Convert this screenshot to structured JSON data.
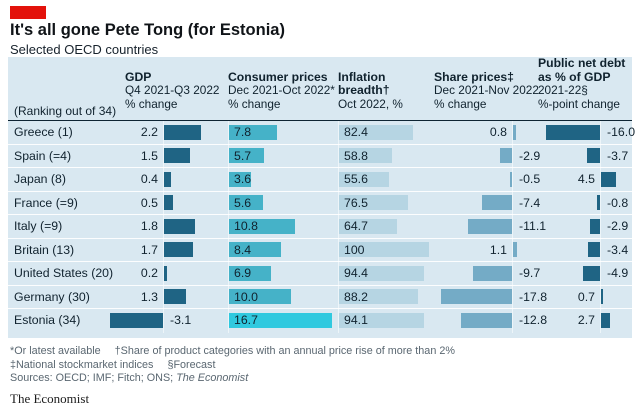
{
  "brand": {
    "signature": "The Economist"
  },
  "header": {
    "title": "It's all gone Pete Tong (for Estonia)",
    "subtitle": "Selected OECD countries"
  },
  "table": {
    "ranking_note": "(Ranking out of 34)",
    "columns": [
      {
        "title": "GDP",
        "period": "Q4 2021-Q3 2022",
        "unit": "% change"
      },
      {
        "title": "Consumer prices",
        "period": "Dec 2021-Oct 2022*",
        "unit": "% change"
      },
      {
        "title": "Inflation breadth†",
        "period": "Oct 2022, %",
        "unit": ""
      },
      {
        "title": "Share prices‡",
        "period": "Dec 2021-Nov 2022",
        "unit": "% change"
      },
      {
        "title": "Public net debt as % of GDP",
        "period": "2021-22§",
        "unit": "%-point change"
      }
    ],
    "rows": [
      {
        "country": "Greece (1)",
        "gdp": "2.2",
        "consumer_prices": "7.8",
        "inflation_breadth": "82.4",
        "share_prices": "0.8",
        "public_debt": "-16.0"
      },
      {
        "country": "Spain (=4)",
        "gdp": "1.5",
        "consumer_prices": "5.7",
        "inflation_breadth": "58.8",
        "share_prices": "-2.9",
        "public_debt": "-3.7"
      },
      {
        "country": "Japan (8)",
        "gdp": "0.4",
        "consumer_prices": "3.6",
        "inflation_breadth": "55.6",
        "share_prices": "-0.5",
        "public_debt": "4.5"
      },
      {
        "country": "France (=9)",
        "gdp": "0.5",
        "consumer_prices": "5.6",
        "inflation_breadth": "76.5",
        "share_prices": "-7.4",
        "public_debt": "-0.8"
      },
      {
        "country": "Italy (=9)",
        "gdp": "1.8",
        "consumer_prices": "10.8",
        "inflation_breadth": "64.7",
        "share_prices": "-11.1",
        "public_debt": "-2.9"
      },
      {
        "country": "Britain (13)",
        "gdp": "1.7",
        "consumer_prices": "8.4",
        "inflation_breadth": "100",
        "share_prices": "1.1",
        "public_debt": "-3.4"
      },
      {
        "country": "United States (20)",
        "gdp": "0.2",
        "consumer_prices": "6.9",
        "inflation_breadth": "94.4",
        "share_prices": "-9.7",
        "public_debt": "-4.9"
      },
      {
        "country": "Germany (30)",
        "gdp": "1.3",
        "consumer_prices": "10.0",
        "inflation_breadth": "88.2",
        "share_prices": "-17.8",
        "public_debt": "0.7"
      },
      {
        "country": "Estonia (34)",
        "gdp": "-3.1",
        "consumer_prices": "16.7",
        "inflation_breadth": "94.1",
        "share_prices": "-12.8",
        "public_debt": "2.7"
      }
    ]
  },
  "chart_data": {
    "type": "bar",
    "title": "It's all gone Pete Tong (for Estonia)",
    "subtitle": "Selected OECD countries",
    "categories": [
      "Greece (1)",
      "Spain (=4)",
      "Japan (8)",
      "France (=9)",
      "Italy (=9)",
      "Britain (13)",
      "United States (20)",
      "Germany (30)",
      "Estonia (34)"
    ],
    "series": [
      {
        "name": "GDP",
        "period": "Q4 2021-Q3 2022",
        "unit": "% change",
        "values": [
          2.2,
          1.5,
          0.4,
          0.5,
          1.8,
          1.7,
          0.2,
          1.3,
          -3.1
        ]
      },
      {
        "name": "Consumer prices",
        "period": "Dec 2021-Oct 2022",
        "unit": "% change",
        "values": [
          7.8,
          5.7,
          3.6,
          5.6,
          10.8,
          8.4,
          6.9,
          10.0,
          16.7
        ]
      },
      {
        "name": "Inflation breadth",
        "period": "Oct 2022",
        "unit": "%",
        "values": [
          82.4,
          58.8,
          55.6,
          76.5,
          64.7,
          100,
          94.4,
          88.2,
          94.1
        ]
      },
      {
        "name": "Share prices",
        "period": "Dec 2021-Nov 2022",
        "unit": "% change",
        "values": [
          0.8,
          -2.9,
          -0.5,
          -7.4,
          -11.1,
          1.1,
          -9.7,
          -17.8,
          -12.8
        ]
      },
      {
        "name": "Public net debt as % of GDP",
        "period": "2021-22",
        "unit": "%-point change",
        "values": [
          -16.0,
          -3.7,
          4.5,
          -0.8,
          -2.9,
          -3.4,
          -4.9,
          0.7,
          2.7
        ]
      }
    ],
    "legend_position": "none",
    "grid": false,
    "highlight_category": "Estonia (34)"
  },
  "colors": {
    "red_tab": "#e3120b",
    "panel_bg": "#d9e8f1",
    "dark_bar": "#1f6484",
    "cp_bar": "#45b2c8",
    "cp_highlight": "#30c9df",
    "ib_bar": "#b6d5e3",
    "sp_bar": "#74abc6",
    "rule": "#0e2433",
    "text": "#10222e",
    "footnote_text": "#5a6771"
  },
  "footnotes": {
    "line1a": "*Or latest available",
    "line1b": "†Share of product categories with an annual price rise of more than 2%",
    "line2a": "‡National stockmarket indices",
    "line2b": "§Forecast",
    "sources_prefix": "Sources: OECD; IMF; Fitch; ONS; ",
    "sources_italic": "The Economist"
  }
}
